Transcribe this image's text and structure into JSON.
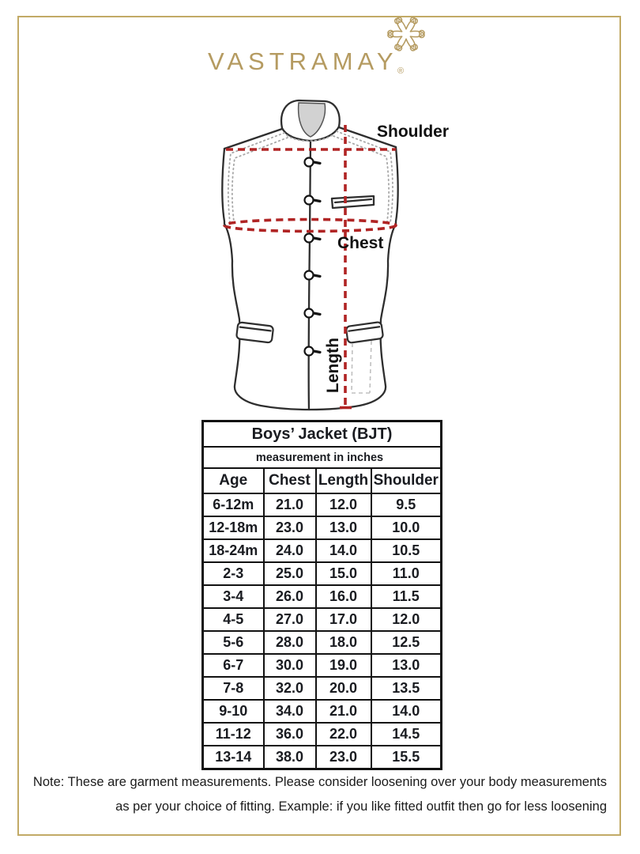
{
  "brand": {
    "name": "VASTRAMAY",
    "registered": "®",
    "emblem_icon": "floral-curl-mandala"
  },
  "diagram": {
    "garment": "sleeveless nehru jacket line drawing",
    "shoulder_label": "Shoulder",
    "chest_label": "Chest",
    "length_label": "Length"
  },
  "chart_data": {
    "type": "table",
    "title": "Boys’ Jacket (BJT)",
    "subtitle": "measurement in inches",
    "columns": [
      "Age",
      "Chest",
      "Length",
      "Shoulder"
    ],
    "rows": [
      [
        "6-12m",
        "21.0",
        "12.0",
        "9.5"
      ],
      [
        "12-18m",
        "23.0",
        "13.0",
        "10.0"
      ],
      [
        "18-24m",
        "24.0",
        "14.0",
        "10.5"
      ],
      [
        "2-3",
        "25.0",
        "15.0",
        "11.0"
      ],
      [
        "3-4",
        "26.0",
        "16.0",
        "11.5"
      ],
      [
        "4-5",
        "27.0",
        "17.0",
        "12.0"
      ],
      [
        "5-6",
        "28.0",
        "18.0",
        "12.5"
      ],
      [
        "6-7",
        "30.0",
        "19.0",
        "13.0"
      ],
      [
        "7-8",
        "32.0",
        "20.0",
        "13.5"
      ],
      [
        "9-10",
        "34.0",
        "21.0",
        "14.0"
      ],
      [
        "11-12",
        "36.0",
        "22.0",
        "14.5"
      ],
      [
        "13-14",
        "38.0",
        "23.0",
        "15.5"
      ]
    ]
  },
  "note": {
    "line1": "Note: These are garment measurements. Please consider loosening over your body measurements",
    "line2": "as per your choice of fitting. Example: if you like fitted outfit then go for less loosening"
  },
  "colors": {
    "brand_gold": "#b59b61",
    "frame_gold": "#c2aa66",
    "measure_red": "#b02424",
    "line_dark": "#2e2e2e",
    "table_ink": "#191b20"
  }
}
